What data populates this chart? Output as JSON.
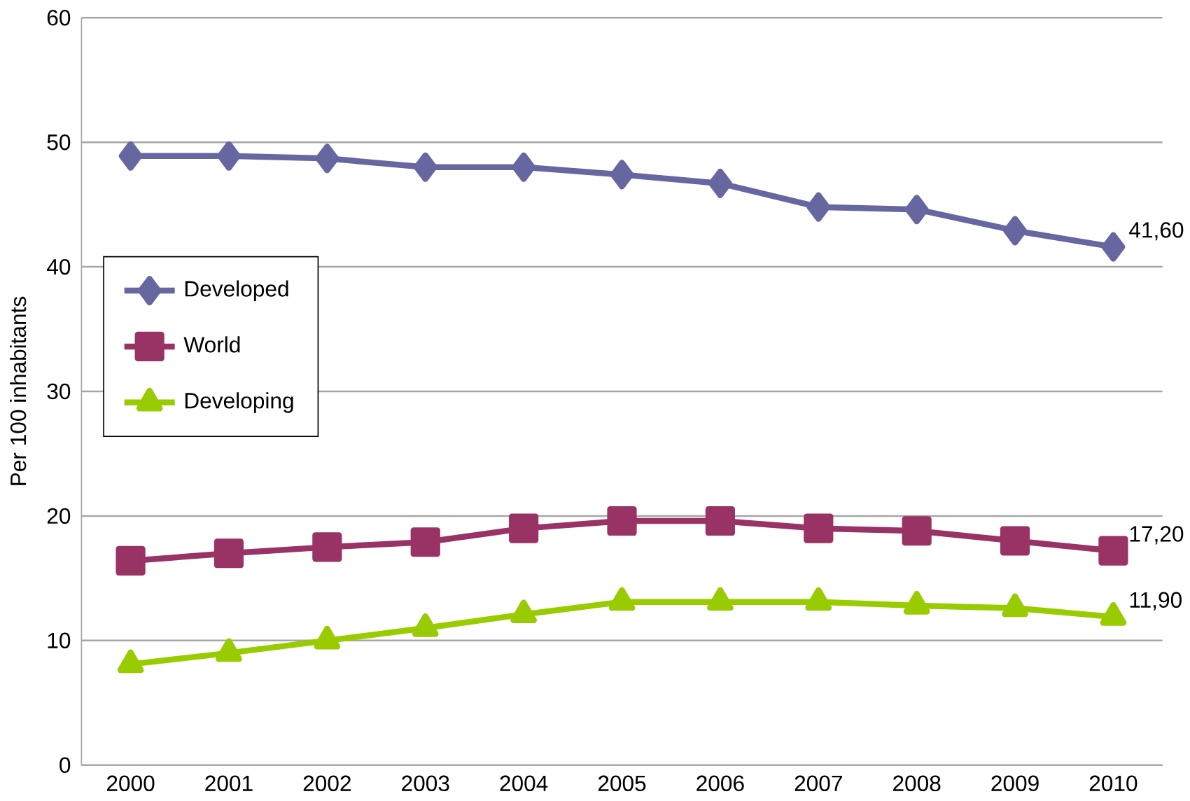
{
  "chart_data": {
    "type": "line",
    "ylabel": "Per 100 inhabitants",
    "categories": [
      "2000",
      "2001",
      "2002",
      "2003",
      "2004",
      "2005",
      "2006",
      "2007",
      "2008",
      "2009",
      "2010"
    ],
    "series": [
      {
        "name": "Developed",
        "color": "#6666a0",
        "marker": "diamond",
        "values": [
          48.9,
          48.9,
          48.7,
          48.0,
          48.0,
          47.4,
          46.7,
          44.8,
          44.6,
          42.9,
          41.6
        ],
        "value_labels": [
          null,
          null,
          null,
          null,
          null,
          null,
          null,
          null,
          null,
          null,
          "41,60"
        ]
      },
      {
        "name": "World",
        "color": "#993366",
        "marker": "square",
        "values": [
          16.4,
          17.0,
          17.5,
          17.9,
          19.0,
          19.6,
          19.6,
          19.0,
          18.8,
          18.0,
          17.2
        ],
        "value_labels": [
          null,
          null,
          null,
          null,
          null,
          null,
          null,
          null,
          null,
          null,
          "17,20"
        ]
      },
      {
        "name": "Developing",
        "color": "#99cc00",
        "marker": "triangle",
        "values": [
          8.1,
          9.0,
          10.0,
          11.0,
          12.1,
          13.1,
          13.1,
          13.1,
          12.8,
          12.6,
          11.9
        ],
        "value_labels": [
          null,
          null,
          null,
          null,
          null,
          null,
          null,
          null,
          null,
          null,
          "11,90"
        ]
      }
    ],
    "ylim": [
      0,
      60
    ],
    "yticks": [
      0,
      10,
      20,
      30,
      40,
      50,
      60
    ],
    "grid": "y",
    "legend": "left"
  }
}
